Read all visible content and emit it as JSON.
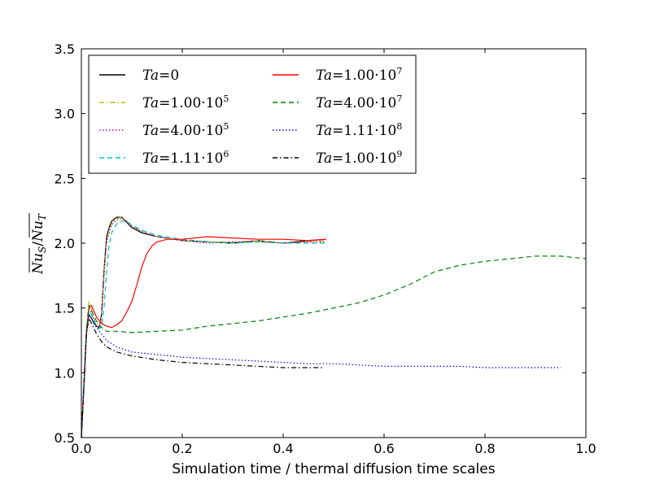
{
  "chart_data": {
    "type": "line",
    "title": "",
    "xlabel": "Simulation time / thermal diffusion time scales",
    "ylabel": "Nu_S / Nu_T (time-averaged)",
    "ylabel_parts": {
      "num": "Nu",
      "num_sub": "S",
      "sep": "/",
      "den": "Nu",
      "den_sub": "T"
    },
    "xlim": [
      0.0,
      1.0
    ],
    "ylim": [
      0.5,
      3.5
    ],
    "xticks": [
      0.0,
      0.2,
      0.4,
      0.6,
      0.8,
      1.0
    ],
    "xtick_labels": [
      "0.0",
      "0.2",
      "0.4",
      "0.6",
      "0.8",
      "1.0"
    ],
    "yticks": [
      0.5,
      1.0,
      1.5,
      2.0,
      2.5,
      3.0,
      3.5
    ],
    "ytick_labels": [
      "0.5",
      "1.0",
      "1.5",
      "2.0",
      "2.5",
      "3.0",
      "3.5"
    ],
    "grid": false,
    "legend_position": "top-left",
    "series": [
      {
        "name": "Ta = 0",
        "ta": "Ta",
        "eq": "=",
        "coef": "0",
        "exp": "",
        "color": "#000000",
        "style": "solid",
        "x": [
          0.0,
          0.005,
          0.01,
          0.015,
          0.02,
          0.025,
          0.03,
          0.035,
          0.04,
          0.045,
          0.05,
          0.055,
          0.06,
          0.07,
          0.08,
          0.09,
          0.1,
          0.12,
          0.15,
          0.2,
          0.25,
          0.3,
          0.35,
          0.4,
          0.45,
          0.485
        ],
        "y": [
          0.5,
          0.9,
          1.3,
          1.45,
          1.42,
          1.38,
          1.36,
          1.35,
          1.45,
          1.8,
          2.05,
          2.12,
          2.17,
          2.2,
          2.2,
          2.16,
          2.12,
          2.08,
          2.05,
          2.02,
          2.01,
          2.0,
          2.02,
          2.0,
          2.02,
          2.03
        ]
      },
      {
        "name": "Ta = 1.00·10^5",
        "ta": "Ta",
        "eq": "=",
        "coef": "1.00",
        "exp": "5",
        "color": "#bfbf00",
        "style": "dashdot",
        "x": [
          0.0,
          0.005,
          0.01,
          0.015,
          0.02,
          0.025,
          0.03,
          0.035,
          0.04,
          0.045,
          0.05,
          0.055,
          0.06,
          0.07,
          0.08,
          0.09,
          0.1,
          0.12,
          0.15,
          0.2,
          0.25,
          0.3,
          0.35,
          0.4,
          0.45,
          0.485
        ],
        "y": [
          0.5,
          0.9,
          1.35,
          1.55,
          1.5,
          1.42,
          1.37,
          1.36,
          1.44,
          1.78,
          2.02,
          2.1,
          2.15,
          2.19,
          2.2,
          2.17,
          2.13,
          2.09,
          2.05,
          2.02,
          2.01,
          2.01,
          2.02,
          2.0,
          2.01,
          2.02
        ]
      },
      {
        "name": "Ta = 4.00·10^5",
        "ta": "Ta",
        "eq": "=",
        "coef": "4.00",
        "exp": "5",
        "color": "#bf00bf",
        "style": "dotted",
        "x": [
          0.0,
          0.005,
          0.01,
          0.015,
          0.02,
          0.025,
          0.03,
          0.035,
          0.04,
          0.045,
          0.05,
          0.055,
          0.06,
          0.07,
          0.08,
          0.09,
          0.1,
          0.12,
          0.15,
          0.2,
          0.25,
          0.3,
          0.35,
          0.4,
          0.45,
          0.485
        ],
        "y": [
          0.5,
          0.9,
          1.32,
          1.5,
          1.46,
          1.4,
          1.36,
          1.35,
          1.42,
          1.75,
          2.0,
          2.08,
          2.14,
          2.18,
          2.19,
          2.17,
          2.13,
          2.09,
          2.05,
          2.02,
          2.0,
          2.01,
          2.01,
          2.0,
          2.01,
          2.01
        ]
      },
      {
        "name": "Ta = 1.11·10^6",
        "ta": "Ta",
        "eq": "=",
        "coef": "1.11",
        "exp": "6",
        "color": "#00bfbf",
        "style": "dashed",
        "x": [
          0.0,
          0.005,
          0.01,
          0.015,
          0.02,
          0.025,
          0.03,
          0.035,
          0.04,
          0.045,
          0.05,
          0.055,
          0.06,
          0.07,
          0.08,
          0.09,
          0.1,
          0.12,
          0.15,
          0.2,
          0.25,
          0.3,
          0.35,
          0.4,
          0.45,
          0.485
        ],
        "y": [
          0.5,
          0.88,
          1.3,
          1.48,
          1.45,
          1.4,
          1.36,
          1.34,
          1.36,
          1.5,
          1.78,
          1.98,
          2.08,
          2.15,
          2.17,
          2.17,
          2.14,
          2.1,
          2.06,
          2.03,
          2.01,
          2.0,
          2.01,
          2.0,
          2.0,
          2.0
        ]
      },
      {
        "name": "Ta = 1.00·10^7",
        "ta": "Ta",
        "eq": "=",
        "coef": "1.00",
        "exp": "7",
        "color": "#ff0000",
        "style": "solid",
        "x": [
          0.0,
          0.005,
          0.01,
          0.015,
          0.02,
          0.03,
          0.04,
          0.05,
          0.06,
          0.07,
          0.08,
          0.09,
          0.1,
          0.11,
          0.12,
          0.13,
          0.14,
          0.15,
          0.17,
          0.2,
          0.25,
          0.3,
          0.35,
          0.4,
          0.45,
          0.485
        ],
        "y": [
          0.5,
          0.9,
          1.3,
          1.5,
          1.52,
          1.43,
          1.38,
          1.36,
          1.35,
          1.37,
          1.4,
          1.47,
          1.55,
          1.68,
          1.82,
          1.92,
          1.98,
          2.01,
          2.03,
          2.03,
          2.05,
          2.04,
          2.03,
          2.03,
          2.02,
          2.03
        ]
      },
      {
        "name": "Ta = 4.00·10^7",
        "ta": "Ta",
        "eq": "=",
        "coef": "4.00",
        "exp": "7",
        "color": "#008000",
        "style": "dashed",
        "x": [
          0.0,
          0.005,
          0.01,
          0.015,
          0.02,
          0.03,
          0.04,
          0.05,
          0.07,
          0.1,
          0.15,
          0.2,
          0.25,
          0.3,
          0.35,
          0.4,
          0.45,
          0.5,
          0.55,
          0.6,
          0.65,
          0.7,
          0.75,
          0.8,
          0.85,
          0.9,
          0.95,
          1.0
        ],
        "y": [
          0.5,
          0.9,
          1.32,
          1.52,
          1.48,
          1.4,
          1.35,
          1.32,
          1.32,
          1.31,
          1.32,
          1.33,
          1.36,
          1.38,
          1.4,
          1.43,
          1.46,
          1.5,
          1.54,
          1.6,
          1.68,
          1.78,
          1.83,
          1.86,
          1.88,
          1.9,
          1.9,
          1.88
        ]
      },
      {
        "name": "Ta = 1.11·10^8",
        "ta": "Ta",
        "eq": "=",
        "coef": "1.11",
        "exp": "8",
        "color": "#0000ff",
        "style": "dotted",
        "x": [
          0.0,
          0.005,
          0.01,
          0.015,
          0.02,
          0.03,
          0.04,
          0.05,
          0.07,
          0.1,
          0.15,
          0.2,
          0.25,
          0.3,
          0.35,
          0.4,
          0.45,
          0.5,
          0.55,
          0.6,
          0.65,
          0.7,
          0.75,
          0.8,
          0.85,
          0.9,
          0.95
        ],
        "y": [
          0.5,
          0.9,
          1.3,
          1.45,
          1.42,
          1.35,
          1.3,
          1.25,
          1.2,
          1.16,
          1.14,
          1.12,
          1.11,
          1.1,
          1.09,
          1.08,
          1.07,
          1.07,
          1.06,
          1.05,
          1.05,
          1.05,
          1.05,
          1.04,
          1.04,
          1.04,
          1.04
        ]
      },
      {
        "name": "Ta = 1.00·10^9",
        "ta": "Ta",
        "eq": "=",
        "coef": "1.00",
        "exp": "9",
        "color": "#000000",
        "style": "dashdot",
        "x": [
          0.0,
          0.005,
          0.01,
          0.015,
          0.02,
          0.03,
          0.04,
          0.05,
          0.07,
          0.1,
          0.15,
          0.2,
          0.25,
          0.3,
          0.35,
          0.4,
          0.45,
          0.48
        ],
        "y": [
          0.5,
          0.9,
          1.3,
          1.42,
          1.38,
          1.3,
          1.24,
          1.2,
          1.16,
          1.13,
          1.1,
          1.08,
          1.07,
          1.06,
          1.05,
          1.04,
          1.04,
          1.04
        ]
      }
    ]
  }
}
